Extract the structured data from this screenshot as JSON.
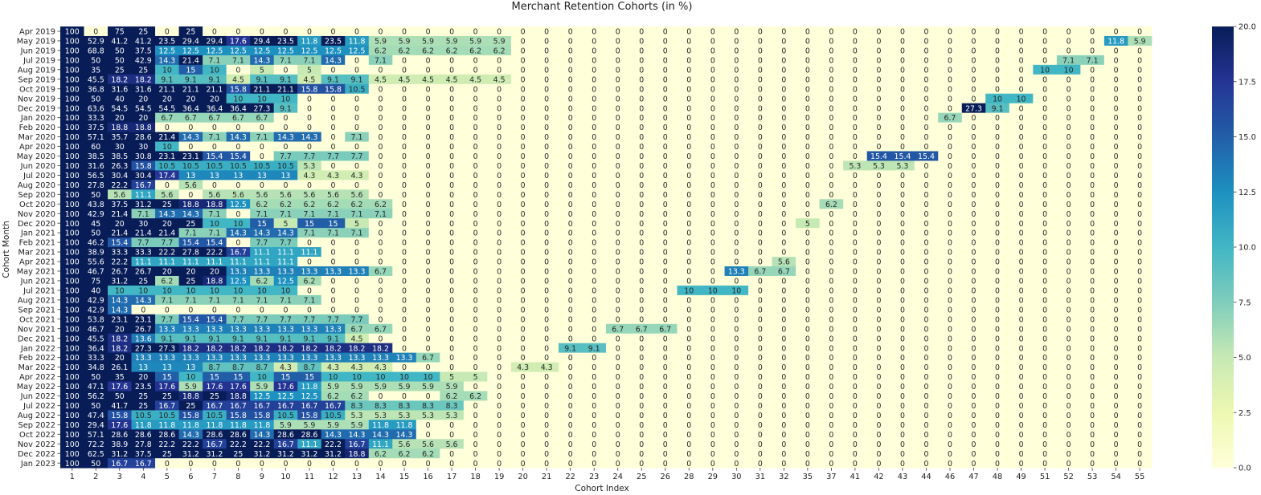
{
  "chart_data": {
    "type": "heatmap",
    "title": "Merchant Retention Cohorts (in %)",
    "xlabel": "Cohort Index",
    "ylabel": "Cohort Month",
    "colormap": "YlGnBu",
    "vmin": 0,
    "vmax": 20,
    "colorbar_ticks": [
      "0.0",
      "2.5",
      "5.0",
      "7.5",
      "10.0",
      "12.5",
      "15.0",
      "17.5",
      "20.0"
    ],
    "colorbar_tick_values": [
      0,
      2.5,
      5,
      7.5,
      10,
      12.5,
      15,
      17.5,
      20
    ],
    "x": [
      "1",
      "2",
      "3",
      "4",
      "5",
      "6",
      "7",
      "8",
      "9",
      "10",
      "11",
      "12",
      "13",
      "14",
      "15",
      "16",
      "17",
      "18",
      "19",
      "20",
      "21",
      "22",
      "23",
      "24",
      "25",
      "26",
      "28",
      "29",
      "30",
      "31",
      "32",
      "35",
      "37",
      "41",
      "42",
      "43",
      "44",
      "46",
      "47",
      "48",
      "49",
      "51",
      "52",
      "53",
      "54",
      "55"
    ],
    "y": [
      "Apr 2019",
      "May 2019",
      "Jun 2019",
      "Jul 2019",
      "Aug 2019",
      "Sep 2019",
      "Oct 2019",
      "Nov 2019",
      "Dec 2019",
      "Jan 2020",
      "Feb 2020",
      "Mar 2020",
      "Apr 2020",
      "May 2020",
      "Jun 2020",
      "Jul 2020",
      "Aug 2020",
      "Sep 2020",
      "Oct 2020",
      "Nov 2020",
      "Dec 2020",
      "Jan 2021",
      "Feb 2021",
      "Mar 2021",
      "Apr 2021",
      "May 2021",
      "Jun 2021",
      "Jul 2021",
      "Aug 2021",
      "Sep 2021",
      "Oct 2021",
      "Nov 2021",
      "Dec 2021",
      "Jan 2022",
      "Feb 2022",
      "Mar 2022",
      "Apr 2022",
      "May 2022",
      "Jun 2022",
      "Jul 2022",
      "Aug 2022",
      "Sep 2022",
      "Oct 2022",
      "Nov 2022",
      "Dec 2022",
      "Jan 2023"
    ],
    "values": [
      [
        100,
        0,
        75,
        25,
        0,
        25
      ],
      [
        100,
        52.9,
        41.2,
        41.2,
        23.5,
        29.4,
        29.4,
        17.6,
        29.4,
        23.5,
        11.8,
        23.5,
        11.8,
        5.9,
        5.9,
        5.9,
        5.9,
        5.9,
        5.9,
        0,
        0,
        0,
        0,
        0,
        0,
        0,
        0,
        0,
        0,
        0,
        0,
        0,
        0,
        0,
        0,
        0,
        0,
        0,
        0,
        0,
        0,
        0,
        0,
        0,
        11.8,
        5.9
      ],
      [
        100,
        68.8,
        50,
        37.5,
        12.5,
        12.5,
        12.5,
        12.5,
        12.5,
        12.5,
        12.5,
        12.5,
        12.5,
        6.2,
        6.2,
        6.2,
        6.2,
        6.2,
        6.2
      ],
      [
        100,
        50,
        50,
        42.9,
        14.3,
        21.4,
        7.1,
        7.1,
        14.3,
        7.1,
        7.1,
        14.3,
        0,
        7.1,
        0,
        0,
        0,
        0,
        0,
        0,
        0,
        0,
        0,
        0,
        0,
        0,
        0,
        0,
        0,
        0,
        0,
        0,
        0,
        0,
        0,
        0,
        0,
        0,
        0,
        0,
        0,
        0,
        7.1,
        7.1
      ],
      [
        100,
        35,
        25,
        25,
        10,
        15,
        10,
        0,
        5,
        0,
        5,
        0,
        0,
        0,
        0,
        0,
        0,
        0,
        0,
        0,
        0,
        0,
        0,
        0,
        0,
        0,
        0,
        0,
        0,
        0,
        0,
        0,
        0,
        0,
        0,
        0,
        0,
        0,
        0,
        0,
        0,
        10,
        10
      ],
      [
        100,
        45.5,
        18.2,
        18.2,
        9.1,
        9.1,
        9.1,
        4.5,
        9.1,
        9.1,
        4.5,
        9.1,
        9.1,
        4.5,
        4.5,
        4.5,
        4.5,
        4.5,
        4.5
      ],
      [
        100,
        36.8,
        31.6,
        31.6,
        21.1,
        21.1,
        21.1,
        15.8,
        21.1,
        21.1,
        15.8,
        15.8,
        10.5
      ],
      [
        100,
        50,
        40,
        20,
        20,
        20,
        20,
        10,
        10,
        10,
        0,
        0,
        0,
        0,
        0,
        0,
        0,
        0,
        0,
        0,
        0,
        0,
        0,
        0,
        0,
        0,
        0,
        0,
        0,
        0,
        0,
        0,
        0,
        0,
        0,
        0,
        0,
        0,
        0,
        10,
        10
      ],
      [
        100,
        63.6,
        54.5,
        54.5,
        54.5,
        36.4,
        36.4,
        36.4,
        27.3,
        9.1,
        0,
        0,
        0,
        0,
        0,
        0,
        0,
        0,
        0,
        0,
        0,
        0,
        0,
        0,
        0,
        0,
        0,
        0,
        0,
        0,
        0,
        0,
        0,
        0,
        0,
        0,
        0,
        0,
        27.3,
        9.1
      ],
      [
        100,
        33.3,
        20,
        20,
        6.7,
        6.7,
        6.7,
        6.7,
        6.7,
        0,
        0,
        0,
        0,
        0,
        0,
        0,
        0,
        0,
        0,
        0,
        0,
        0,
        0,
        0,
        0,
        0,
        0,
        0,
        0,
        0,
        0,
        0,
        0,
        0,
        0,
        0,
        0,
        6.7
      ],
      [
        100,
        37.5,
        18.8,
        18.8
      ],
      [
        100,
        57.1,
        35.7,
        28.6,
        21.4,
        14.3,
        7.1,
        14.3,
        7.1,
        14.3,
        14.3,
        0,
        7.1
      ],
      [
        100,
        60,
        30,
        30,
        10
      ],
      [
        100,
        38.5,
        38.5,
        30.8,
        23.1,
        23.1,
        15.4,
        15.4,
        0,
        7.7,
        7.7,
        7.7,
        7.7,
        0,
        0,
        0,
        0,
        0,
        0,
        0,
        0,
        0,
        0,
        0,
        0,
        0,
        0,
        0,
        0,
        0,
        0,
        0,
        0,
        0,
        15.4,
        15.4,
        15.4
      ],
      [
        100,
        31.6,
        26.3,
        15.8,
        10.5,
        10.5,
        10.5,
        10.5,
        10.5,
        10.5,
        5.3,
        0,
        0,
        0,
        0,
        0,
        0,
        0,
        0,
        0,
        0,
        0,
        0,
        0,
        0,
        0,
        0,
        0,
        0,
        0,
        0,
        0,
        0,
        5.3,
        5.3,
        5.3
      ],
      [
        100,
        56.5,
        30.4,
        30.4,
        17.4,
        13,
        13,
        13,
        13,
        13,
        4.3,
        4.3,
        4.3
      ],
      [
        100,
        27.8,
        22.2,
        16.7,
        0,
        5.6
      ],
      [
        100,
        50,
        5.6,
        11.1,
        5.6,
        0,
        5.6,
        5.6,
        5.6,
        5.6,
        5.6,
        5.6,
        5.6
      ],
      [
        100,
        43.8,
        37.5,
        31.2,
        25,
        18.8,
        18.8,
        12.5,
        6.2,
        6.2,
        6.2,
        6.2,
        6.2,
        6.2,
        0,
        0,
        0,
        0,
        0,
        0,
        0,
        0,
        0,
        0,
        0,
        0,
        0,
        0,
        0,
        0,
        0,
        0,
        6.2
      ],
      [
        100,
        42.9,
        21.4,
        7.1,
        14.3,
        14.3,
        7.1,
        0,
        7.1,
        7.1,
        7.1,
        7.1,
        7.1,
        7.1
      ],
      [
        100,
        45,
        20,
        30,
        20,
        25,
        10,
        10,
        15,
        5,
        15,
        15,
        5,
        0,
        0,
        0,
        0,
        0,
        0,
        0,
        0,
        0,
        0,
        0,
        0,
        0,
        0,
        0,
        0,
        0,
        0,
        5
      ],
      [
        100,
        50,
        21.4,
        21.4,
        21.4,
        7.1,
        7.1,
        14.3,
        14.3,
        14.3,
        7.1,
        7.1,
        7.1
      ],
      [
        100,
        46.2,
        15.4,
        7.7,
        7.7,
        15.4,
        15.4,
        0,
        7.7,
        7.7
      ],
      [
        100,
        38.9,
        33.3,
        33.3,
        22.2,
        27.8,
        22.2,
        16.7,
        11.1,
        11.1,
        11.1
      ],
      [
        100,
        55.6,
        22.2,
        11.1,
        11.1,
        11.1,
        11.1,
        11.1,
        11.1,
        11.1,
        0,
        0,
        0,
        0,
        0,
        0,
        0,
        0,
        0,
        0,
        0,
        0,
        0,
        0,
        0,
        0,
        0,
        0,
        0,
        0,
        5.6
      ],
      [
        100,
        46.7,
        26.7,
        26.7,
        20,
        20,
        20,
        13.3,
        13.3,
        13.3,
        13.3,
        13.3,
        13.3,
        6.7,
        0,
        0,
        0,
        0,
        0,
        0,
        0,
        0,
        0,
        0,
        0,
        0,
        0,
        0,
        13.3,
        6.7,
        6.7
      ],
      [
        100,
        75,
        31.2,
        25,
        6.2,
        25,
        18.8,
        12.5,
        6.2,
        12.5,
        6.2
      ],
      [
        100,
        40,
        10,
        10,
        10,
        10,
        10,
        10,
        10,
        10,
        0,
        0,
        0,
        0,
        0,
        0,
        0,
        0,
        0,
        0,
        0,
        0,
        0,
        0,
        0,
        0,
        10,
        10,
        10
      ],
      [
        100,
        42.9,
        14.3,
        14.3,
        7.1,
        7.1,
        7.1,
        7.1,
        7.1,
        7.1,
        7.1
      ],
      [
        100,
        42.9,
        14.3
      ],
      [
        100,
        53.8,
        23.1,
        23.1,
        7.7,
        15.4,
        15.4,
        7.7,
        7.7,
        7.7,
        7.7,
        7.7,
        7.7
      ],
      [
        100,
        46.7,
        20,
        26.7,
        13.3,
        13.3,
        13.3,
        13.3,
        13.3,
        13.3,
        13.3,
        13.3,
        6.7,
        6.7,
        0,
        0,
        0,
        0,
        0,
        0,
        0,
        0,
        0,
        6.7,
        6.7,
        6.7
      ],
      [
        100,
        45.5,
        18.2,
        13.6,
        9.1,
        9.1,
        9.1,
        9.1,
        9.1,
        9.1,
        9.1,
        9.1,
        4.5
      ],
      [
        100,
        36.4,
        18.2,
        27.3,
        27.3,
        18.2,
        18.2,
        18.2,
        18.2,
        18.2,
        18.2,
        18.2,
        18.2,
        18.2,
        0,
        0,
        0,
        0,
        0,
        0,
        0,
        9.1,
        9.1
      ],
      [
        100,
        33.3,
        20,
        13.3,
        13.3,
        13.3,
        13.3,
        13.3,
        13.3,
        13.3,
        13.3,
        13.3,
        13.3,
        13.3,
        13.3,
        6.7
      ],
      [
        100,
        34.8,
        26.1,
        13,
        13,
        13,
        8.7,
        8.7,
        8.7,
        4.3,
        8.7,
        4.3,
        4.3,
        4.3,
        0,
        0,
        0,
        0,
        0,
        4.3,
        4.3
      ],
      [
        100,
        50,
        35,
        20,
        15,
        10,
        15,
        15,
        10,
        15,
        15,
        10,
        10,
        10,
        10,
        10,
        5,
        5
      ],
      [
        100,
        47.1,
        17.6,
        23.5,
        17.6,
        5.9,
        17.6,
        17.6,
        5.9,
        17.6,
        11.8,
        5.9,
        5.9,
        5.9,
        5.9,
        5.9,
        5.9
      ],
      [
        100,
        56.2,
        50,
        25,
        25,
        18.8,
        25,
        18.8,
        12.5,
        12.5,
        12.5,
        6.2,
        6.2,
        0,
        0,
        0,
        6.2,
        6.2
      ],
      [
        100,
        50,
        41.7,
        25,
        16.7,
        25,
        16.7,
        16.7,
        16.7,
        16.7,
        16.7,
        16.7,
        8.3,
        8.3,
        8.3,
        8.3,
        8.3
      ],
      [
        100,
        47.4,
        15.8,
        10.5,
        10.5,
        15.8,
        10.5,
        15.8,
        15.8,
        10.5,
        15.8,
        10.5,
        5.3,
        5.3,
        5.3,
        5.3,
        5.3
      ],
      [
        100,
        29.4,
        17.6,
        11.8,
        11.8,
        11.8,
        11.8,
        11.8,
        11.8,
        5.9,
        5.9,
        5.9,
        5.9,
        11.8,
        11.8
      ],
      [
        100,
        57.1,
        28.6,
        28.6,
        28.6,
        14.3,
        28.6,
        28.6,
        14.3,
        28.6,
        28.6,
        14.3,
        14.3,
        14.3,
        14.3
      ],
      [
        100,
        72.2,
        38.9,
        27.8,
        22.2,
        22.2,
        16.7,
        22.2,
        22.2,
        16.7,
        11.1,
        22.2,
        16.7,
        11.1,
        5.6,
        5.6,
        5.6
      ],
      [
        100,
        62.5,
        31.2,
        37.5,
        25,
        31.2,
        31.2,
        25,
        31.2,
        31.2,
        31.2,
        31.2,
        18.8,
        6.2,
        6.2,
        6.2
      ],
      [
        100,
        50,
        16.7,
        16.7
      ]
    ]
  }
}
